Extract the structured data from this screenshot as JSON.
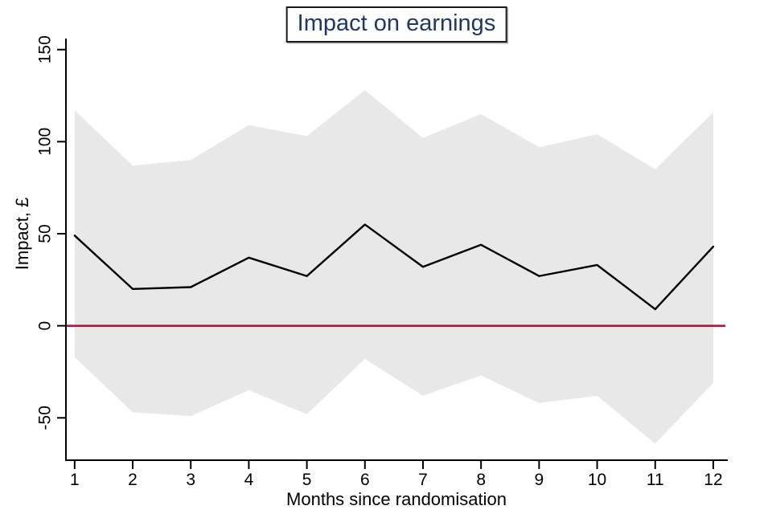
{
  "chart_data": {
    "type": "line",
    "title": "Impact on earnings",
    "title_color": "#1f3864",
    "xlabel": "Months since randomisation",
    "ylabel": "Impact, £",
    "x": [
      1,
      2,
      3,
      4,
      5,
      6,
      7,
      8,
      9,
      10,
      11,
      12
    ],
    "series": [
      {
        "name": "impact-estimate",
        "type": "line",
        "color": "#000000",
        "values": [
          49,
          20,
          21,
          37,
          27,
          55,
          32,
          44,
          27,
          33,
          9,
          43
        ]
      },
      {
        "name": "confidence-interval",
        "type": "band",
        "color": "#e8e8e8",
        "upper": [
          117,
          87,
          90,
          109,
          103,
          128,
          102,
          115,
          97,
          104,
          85,
          116
        ],
        "lower": [
          -17,
          -47,
          -49,
          -35,
          -48,
          -18,
          -38,
          -27,
          -42,
          -38,
          -64,
          -31
        ]
      }
    ],
    "reference_line": {
      "y": 0,
      "color": "#b01842"
    },
    "xticks": [
      1,
      2,
      3,
      4,
      5,
      6,
      7,
      8,
      9,
      10,
      11,
      12
    ],
    "yticks": [
      150,
      100,
      50,
      0,
      -50
    ],
    "xlim": [
      0.85,
      12.25
    ],
    "ylim": [
      -73,
      156
    ],
    "grid": false,
    "legend_position": "none",
    "axis_color": "#000000"
  }
}
